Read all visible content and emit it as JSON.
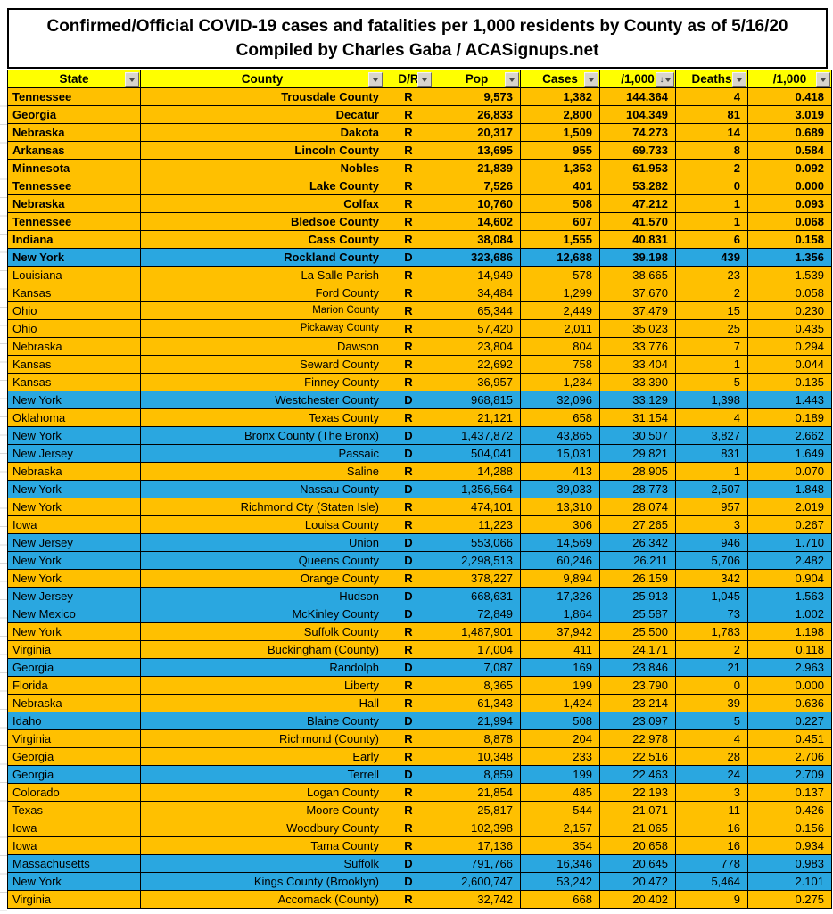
{
  "title": {
    "line1": "Confirmed/Official COVID-19 cases and fatalities per 1,000 residents by County as of 5/16/20",
    "line2": "Compiled by Charles Gaba / ACASignups.net"
  },
  "colors": {
    "republican_row": "#FFC000",
    "democrat_row": "#2AA7E0",
    "header_background": "#FFFF00",
    "filter_button": "#D8D4CC"
  },
  "table": {
    "columns": [
      {
        "key": "state",
        "label": "State",
        "sorted": false
      },
      {
        "key": "county",
        "label": "County",
        "sorted": false
      },
      {
        "key": "dr",
        "label": "D/R",
        "sorted": false
      },
      {
        "key": "pop",
        "label": "Pop",
        "sorted": false
      },
      {
        "key": "cases",
        "label": "Cases",
        "sorted": false
      },
      {
        "key": "per1000",
        "label": "/1,000",
        "sorted": true,
        "sort_direction": "descending"
      },
      {
        "key": "deaths",
        "label": "Deaths",
        "sorted": false
      },
      {
        "key": "dper1000",
        "label": "/1,000",
        "sorted": false
      }
    ],
    "rows": [
      {
        "state": "Tennessee",
        "county": "Trousdale County",
        "dr": "R",
        "pop": "9,573",
        "cases": "1,382",
        "per1000": "144.364",
        "deaths": "4",
        "dper1000": "0.418",
        "bold": true
      },
      {
        "state": "Georgia",
        "county": "Decatur",
        "dr": "R",
        "pop": "26,833",
        "cases": "2,800",
        "per1000": "104.349",
        "deaths": "81",
        "dper1000": "3.019",
        "bold": true
      },
      {
        "state": "Nebraska",
        "county": "Dakota",
        "dr": "R",
        "pop": "20,317",
        "cases": "1,509",
        "per1000": "74.273",
        "deaths": "14",
        "dper1000": "0.689",
        "bold": true
      },
      {
        "state": "Arkansas",
        "county": "Lincoln County",
        "dr": "R",
        "pop": "13,695",
        "cases": "955",
        "per1000": "69.733",
        "deaths": "8",
        "dper1000": "0.584",
        "bold": true
      },
      {
        "state": "Minnesota",
        "county": "Nobles",
        "dr": "R",
        "pop": "21,839",
        "cases": "1,353",
        "per1000": "61.953",
        "deaths": "2",
        "dper1000": "0.092",
        "bold": true
      },
      {
        "state": "Tennessee",
        "county": "Lake County",
        "dr": "R",
        "pop": "7,526",
        "cases": "401",
        "per1000": "53.282",
        "deaths": "0",
        "dper1000": "0.000",
        "bold": true
      },
      {
        "state": "Nebraska",
        "county": "Colfax",
        "dr": "R",
        "pop": "10,760",
        "cases": "508",
        "per1000": "47.212",
        "deaths": "1",
        "dper1000": "0.093",
        "bold": true
      },
      {
        "state": "Tennessee",
        "county": "Bledsoe County",
        "dr": "R",
        "pop": "14,602",
        "cases": "607",
        "per1000": "41.570",
        "deaths": "1",
        "dper1000": "0.068",
        "bold": true
      },
      {
        "state": "Indiana",
        "county": "Cass County",
        "dr": "R",
        "pop": "38,084",
        "cases": "1,555",
        "per1000": "40.831",
        "deaths": "6",
        "dper1000": "0.158",
        "bold": true
      },
      {
        "state": "New York",
        "county": "Rockland County",
        "dr": "D",
        "pop": "323,686",
        "cases": "12,688",
        "per1000": "39.198",
        "deaths": "439",
        "dper1000": "1.356",
        "bold": true
      },
      {
        "state": "Louisiana",
        "county": "La Salle Parish",
        "dr": "R",
        "pop": "14,949",
        "cases": "578",
        "per1000": "38.665",
        "deaths": "23",
        "dper1000": "1.539"
      },
      {
        "state": "Kansas",
        "county": "Ford County",
        "dr": "R",
        "pop": "34,484",
        "cases": "1,299",
        "per1000": "37.670",
        "deaths": "2",
        "dper1000": "0.058"
      },
      {
        "state": "Ohio",
        "county": "Marion County",
        "dr": "R",
        "pop": "65,344",
        "cases": "2,449",
        "per1000": "37.479",
        "deaths": "15",
        "dper1000": "0.230",
        "small": true
      },
      {
        "state": "Ohio",
        "county": "Pickaway County",
        "dr": "R",
        "pop": "57,420",
        "cases": "2,011",
        "per1000": "35.023",
        "deaths": "25",
        "dper1000": "0.435",
        "small": true
      },
      {
        "state": "Nebraska",
        "county": "Dawson",
        "dr": "R",
        "pop": "23,804",
        "cases": "804",
        "per1000": "33.776",
        "deaths": "7",
        "dper1000": "0.294"
      },
      {
        "state": "Kansas",
        "county": "Seward County",
        "dr": "R",
        "pop": "22,692",
        "cases": "758",
        "per1000": "33.404",
        "deaths": "1",
        "dper1000": "0.044"
      },
      {
        "state": "Kansas",
        "county": "Finney County",
        "dr": "R",
        "pop": "36,957",
        "cases": "1,234",
        "per1000": "33.390",
        "deaths": "5",
        "dper1000": "0.135"
      },
      {
        "state": "New York",
        "county": "Westchester County",
        "dr": "D",
        "pop": "968,815",
        "cases": "32,096",
        "per1000": "33.129",
        "deaths": "1,398",
        "dper1000": "1.443"
      },
      {
        "state": "Oklahoma",
        "county": "Texas County",
        "dr": "R",
        "pop": "21,121",
        "cases": "658",
        "per1000": "31.154",
        "deaths": "4",
        "dper1000": "0.189"
      },
      {
        "state": "New York",
        "county": "Bronx County (The Bronx)",
        "dr": "D",
        "pop": "1,437,872",
        "cases": "43,865",
        "per1000": "30.507",
        "deaths": "3,827",
        "dper1000": "2.662"
      },
      {
        "state": "New Jersey",
        "county": "Passaic",
        "dr": "D",
        "pop": "504,041",
        "cases": "15,031",
        "per1000": "29.821",
        "deaths": "831",
        "dper1000": "1.649"
      },
      {
        "state": "Nebraska",
        "county": "Saline",
        "dr": "R",
        "pop": "14,288",
        "cases": "413",
        "per1000": "28.905",
        "deaths": "1",
        "dper1000": "0.070"
      },
      {
        "state": "New York",
        "county": "Nassau County",
        "dr": "D",
        "pop": "1,356,564",
        "cases": "39,033",
        "per1000": "28.773",
        "deaths": "2,507",
        "dper1000": "1.848"
      },
      {
        "state": "New York",
        "county": "Richmond Cty (Staten Isle)",
        "dr": "R",
        "pop": "474,101",
        "cases": "13,310",
        "per1000": "28.074",
        "deaths": "957",
        "dper1000": "2.019"
      },
      {
        "state": "Iowa",
        "county": "Louisa County",
        "dr": "R",
        "pop": "11,223",
        "cases": "306",
        "per1000": "27.265",
        "deaths": "3",
        "dper1000": "0.267"
      },
      {
        "state": "New Jersey",
        "county": "Union",
        "dr": "D",
        "pop": "553,066",
        "cases": "14,569",
        "per1000": "26.342",
        "deaths": "946",
        "dper1000": "1.710"
      },
      {
        "state": "New York",
        "county": "Queens County",
        "dr": "D",
        "pop": "2,298,513",
        "cases": "60,246",
        "per1000": "26.211",
        "deaths": "5,706",
        "dper1000": "2.482"
      },
      {
        "state": "New York",
        "county": "Orange County",
        "dr": "R",
        "pop": "378,227",
        "cases": "9,894",
        "per1000": "26.159",
        "deaths": "342",
        "dper1000": "0.904"
      },
      {
        "state": "New Jersey",
        "county": "Hudson",
        "dr": "D",
        "pop": "668,631",
        "cases": "17,326",
        "per1000": "25.913",
        "deaths": "1,045",
        "dper1000": "1.563"
      },
      {
        "state": "New Mexico",
        "county": "McKinley County",
        "dr": "D",
        "pop": "72,849",
        "cases": "1,864",
        "per1000": "25.587",
        "deaths": "73",
        "dper1000": "1.002"
      },
      {
        "state": "New York",
        "county": "Suffolk County",
        "dr": "R",
        "pop": "1,487,901",
        "cases": "37,942",
        "per1000": "25.500",
        "deaths": "1,783",
        "dper1000": "1.198"
      },
      {
        "state": "Virginia",
        "county": "Buckingham (County)",
        "dr": "R",
        "pop": "17,004",
        "cases": "411",
        "per1000": "24.171",
        "deaths": "2",
        "dper1000": "0.118"
      },
      {
        "state": "Georgia",
        "county": "Randolph",
        "dr": "D",
        "pop": "7,087",
        "cases": "169",
        "per1000": "23.846",
        "deaths": "21",
        "dper1000": "2.963"
      },
      {
        "state": "Florida",
        "county": "Liberty",
        "dr": "R",
        "pop": "8,365",
        "cases": "199",
        "per1000": "23.790",
        "deaths": "0",
        "dper1000": "0.000"
      },
      {
        "state": "Nebraska",
        "county": "Hall",
        "dr": "R",
        "pop": "61,343",
        "cases": "1,424",
        "per1000": "23.214",
        "deaths": "39",
        "dper1000": "0.636"
      },
      {
        "state": "Idaho",
        "county": "Blaine County",
        "dr": "D",
        "pop": "21,994",
        "cases": "508",
        "per1000": "23.097",
        "deaths": "5",
        "dper1000": "0.227"
      },
      {
        "state": "Virginia",
        "county": "Richmond (County)",
        "dr": "R",
        "pop": "8,878",
        "cases": "204",
        "per1000": "22.978",
        "deaths": "4",
        "dper1000": "0.451"
      },
      {
        "state": "Georgia",
        "county": "Early",
        "dr": "R",
        "pop": "10,348",
        "cases": "233",
        "per1000": "22.516",
        "deaths": "28",
        "dper1000": "2.706"
      },
      {
        "state": "Georgia",
        "county": "Terrell",
        "dr": "D",
        "pop": "8,859",
        "cases": "199",
        "per1000": "22.463",
        "deaths": "24",
        "dper1000": "2.709"
      },
      {
        "state": "Colorado",
        "county": "Logan County",
        "dr": "R",
        "pop": "21,854",
        "cases": "485",
        "per1000": "22.193",
        "deaths": "3",
        "dper1000": "0.137"
      },
      {
        "state": "Texas",
        "county": "Moore County",
        "dr": "R",
        "pop": "25,817",
        "cases": "544",
        "per1000": "21.071",
        "deaths": "11",
        "dper1000": "0.426"
      },
      {
        "state": "Iowa",
        "county": "Woodbury County",
        "dr": "R",
        "pop": "102,398",
        "cases": "2,157",
        "per1000": "21.065",
        "deaths": "16",
        "dper1000": "0.156"
      },
      {
        "state": "Iowa",
        "county": "Tama County",
        "dr": "R",
        "pop": "17,136",
        "cases": "354",
        "per1000": "20.658",
        "deaths": "16",
        "dper1000": "0.934"
      },
      {
        "state": "Massachusetts",
        "county": "Suffolk",
        "dr": "D",
        "pop": "791,766",
        "cases": "16,346",
        "per1000": "20.645",
        "deaths": "778",
        "dper1000": "0.983"
      },
      {
        "state": "New York",
        "county": "Kings County (Brooklyn)",
        "dr": "D",
        "pop": "2,600,747",
        "cases": "53,242",
        "per1000": "20.472",
        "deaths": "5,464",
        "dper1000": "2.101"
      },
      {
        "state": "Virginia",
        "county": "Accomack (County)",
        "dr": "R",
        "pop": "32,742",
        "cases": "668",
        "per1000": "20.402",
        "deaths": "9",
        "dper1000": "0.275",
        "partial": true
      }
    ]
  }
}
